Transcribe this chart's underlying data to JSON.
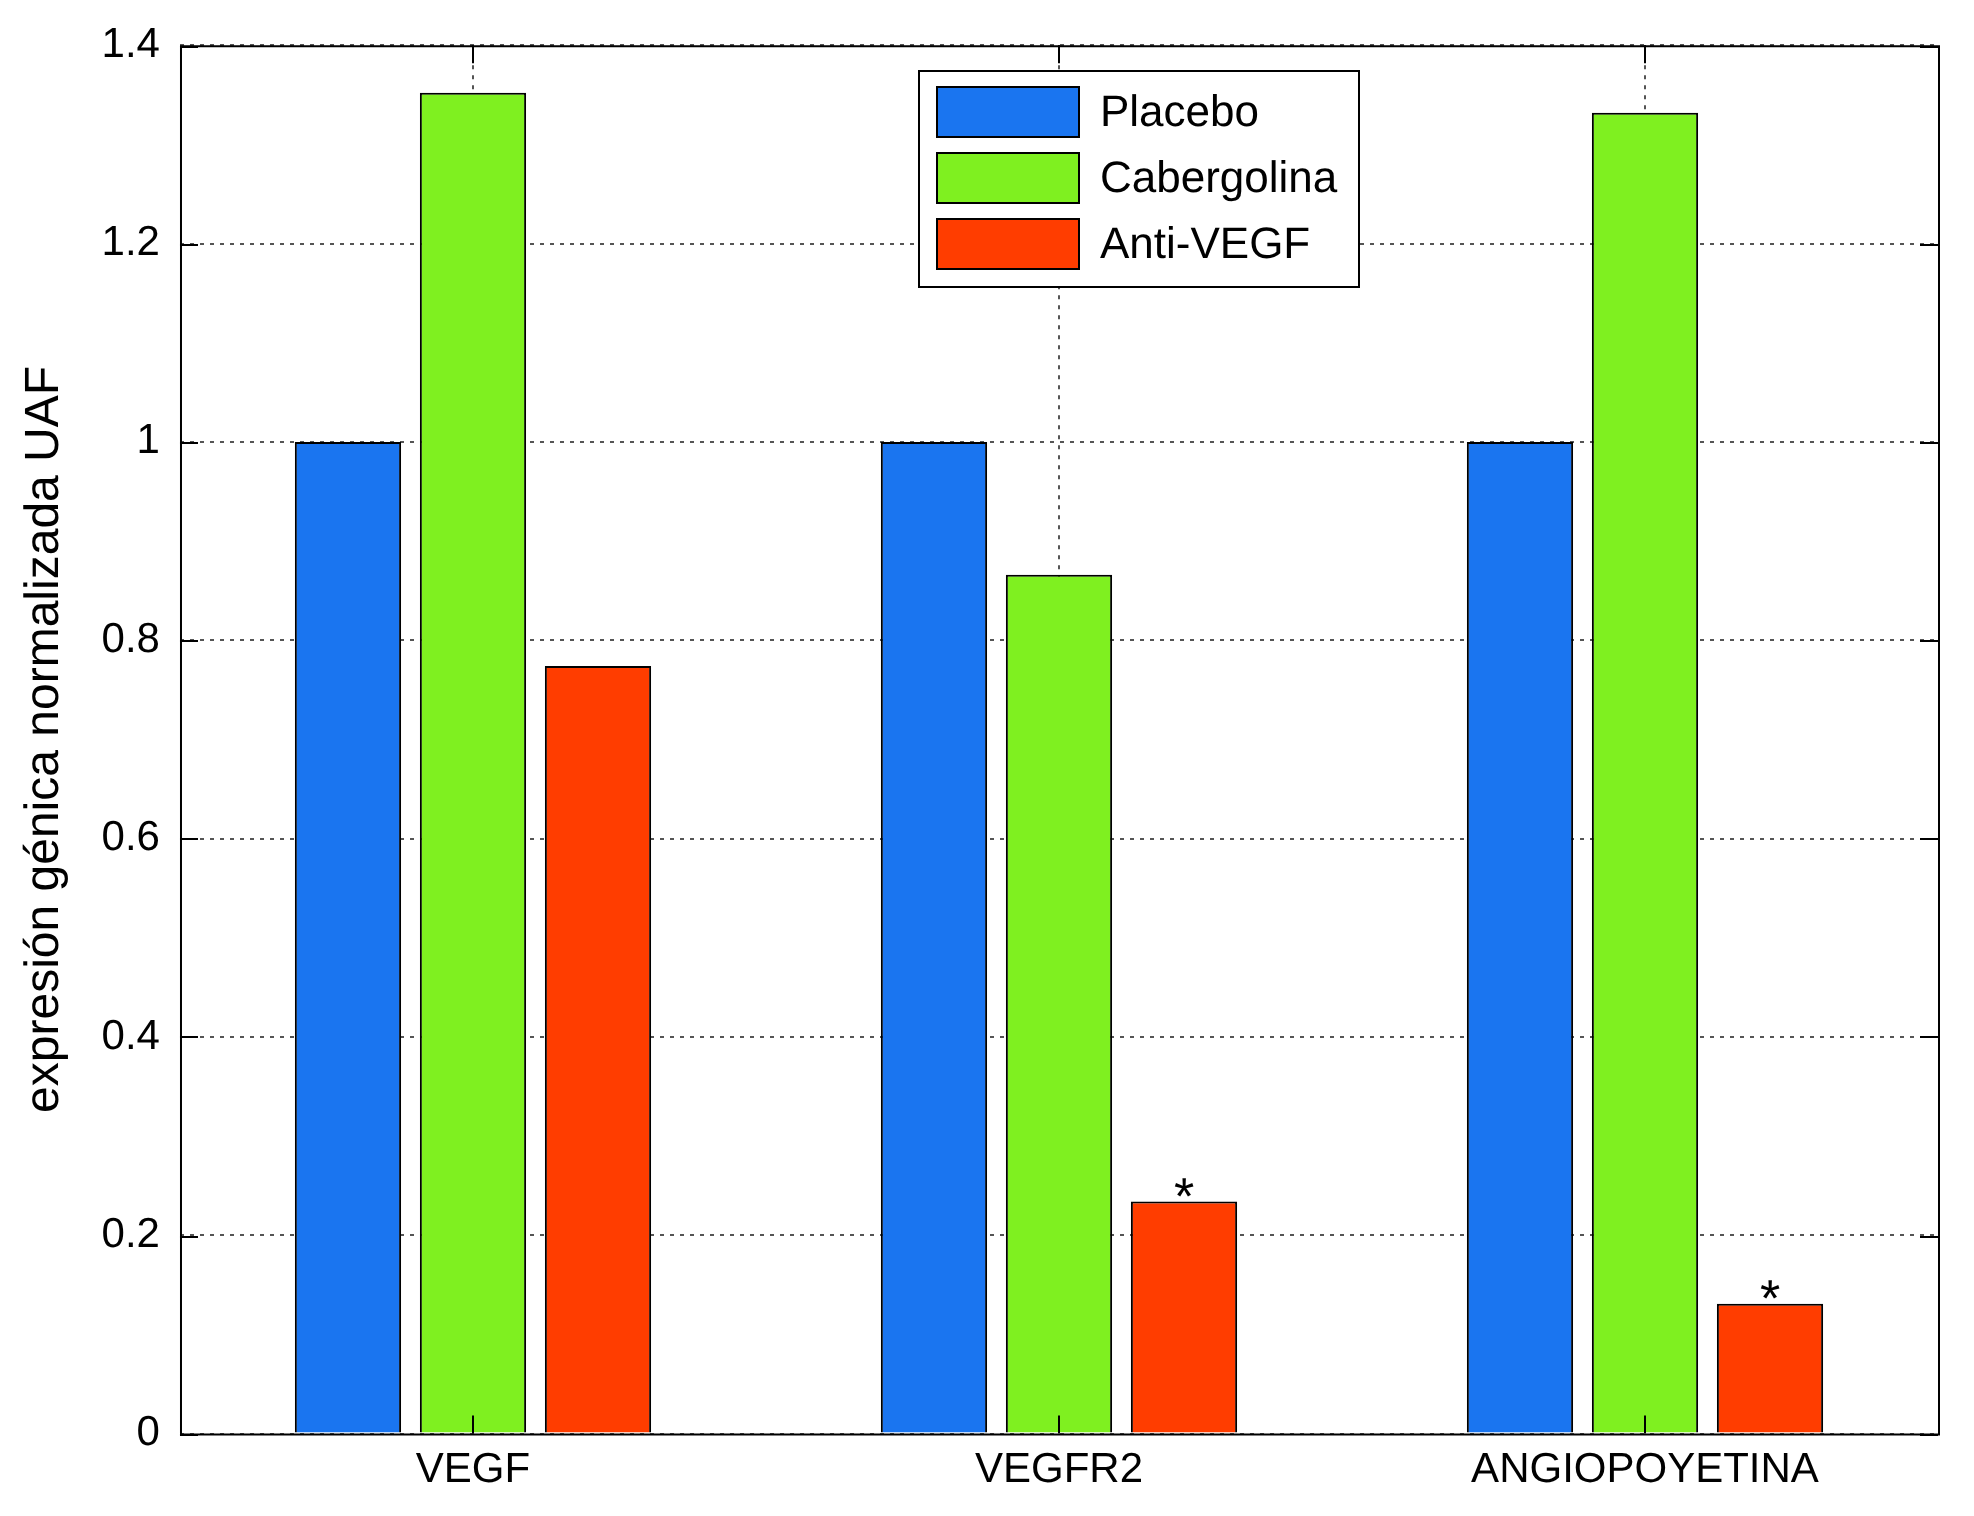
{
  "chart_data": {
    "type": "bar",
    "ylabel": "expresión génica normalizada UAF",
    "categories": [
      "VEGF",
      "VEGFR2",
      "ANGIOPOYETINA"
    ],
    "series": [
      {
        "name": "Placebo",
        "color": "#1a75f0",
        "values": [
          1,
          1,
          1
        ]
      },
      {
        "name": "Cabergolina",
        "color": "#7ff020",
        "values": [
          1.352,
          0.866,
          1.332
        ]
      },
      {
        "name": "Anti-VEGF",
        "color": "#ff3d00",
        "values": [
          0.774,
          0.234,
          0.131
        ],
        "value_labels": [
          null,
          "*",
          "*"
        ]
      }
    ],
    "ylim": [
      0,
      1.4
    ],
    "yticks": [
      0,
      0.2,
      0.4,
      0.6,
      0.8,
      1,
      1.2,
      1.4
    ],
    "grid": true,
    "legend": "top"
  }
}
